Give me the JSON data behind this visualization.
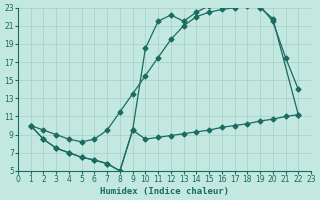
{
  "xlabel": "Humidex (Indice chaleur)",
  "bg_color": "#c2e8e0",
  "grid_color": "#a8cec8",
  "line_color": "#1a6b60",
  "xlim": [
    0,
    23
  ],
  "ylim": [
    5,
    23
  ],
  "xticks": [
    0,
    1,
    2,
    3,
    4,
    5,
    6,
    7,
    8,
    9,
    10,
    11,
    12,
    13,
    14,
    15,
    16,
    17,
    18,
    19,
    20,
    21,
    22,
    23
  ],
  "yticks": [
    5,
    7,
    9,
    11,
    13,
    15,
    17,
    19,
    21,
    23
  ],
  "line1_x": [
    1,
    2,
    3,
    4,
    5,
    6,
    7,
    8,
    9,
    10,
    11,
    12,
    13,
    14,
    15,
    16,
    17,
    18,
    19,
    20,
    21,
    22
  ],
  "line1_y": [
    10,
    8.5,
    7.5,
    7.0,
    6.5,
    6.2,
    5.8,
    5.0,
    9.5,
    18.5,
    21.5,
    22.2,
    21.5,
    22.5,
    23.2,
    23.5,
    23.8,
    23.5,
    23.2,
    21.5,
    17.5,
    14.0
  ],
  "line2_x": [
    1,
    2,
    3,
    4,
    5,
    6,
    7,
    8,
    9,
    10,
    11,
    12,
    13,
    14,
    15,
    16,
    17,
    18,
    19,
    20,
    22
  ],
  "line2_y": [
    10,
    9.5,
    9.0,
    8.5,
    8.2,
    8.5,
    9.5,
    11.5,
    13.5,
    15.5,
    17.5,
    19.5,
    21.0,
    22.0,
    22.5,
    22.8,
    23.0,
    23.2,
    23.0,
    21.8,
    11.2
  ],
  "line3_x": [
    1,
    2,
    3,
    4,
    5,
    6,
    7,
    8,
    9,
    10,
    11,
    12,
    13,
    14,
    15,
    16,
    17,
    18,
    19,
    20,
    21,
    22
  ],
  "line3_y": [
    10,
    8.5,
    7.5,
    7.0,
    6.5,
    6.2,
    5.8,
    5.0,
    9.5,
    8.5,
    8.7,
    8.9,
    9.1,
    9.3,
    9.5,
    9.8,
    10.0,
    10.2,
    10.5,
    10.7,
    11.0,
    11.2
  ]
}
